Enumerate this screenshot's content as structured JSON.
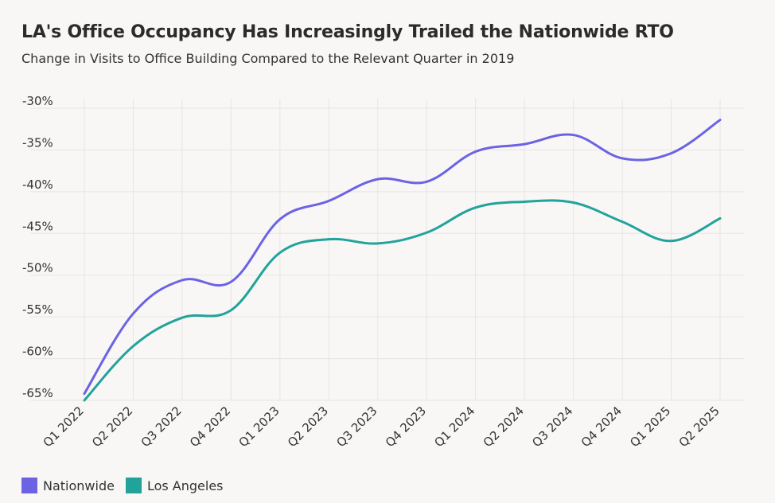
{
  "title": "LA's Office Occupancy Has Increasingly Trailed the Nationwide RTO",
  "subtitle": "Change in Visits to Office Building Compared to the Relevant Quarter in 2019",
  "colors": {
    "nationwide": "#6b63e3",
    "los_angeles": "#21a39b",
    "grid": "#e6e5e3",
    "background": "#f8f7f6"
  },
  "chart_data": {
    "type": "line",
    "title": "LA's Office Occupancy Has Increasingly Trailed the Nationwide RTO",
    "subtitle": "Change in Visits to Office Building Compared to the Relevant Quarter in 2019",
    "xlabel": "",
    "ylabel": "",
    "categories": [
      "Q1 2022",
      "Q2 2022",
      "Q3 2022",
      "Q4 2022",
      "Q1 2023",
      "Q2 2023",
      "Q3 2023",
      "Q4 2023",
      "Q1 2024",
      "Q2 2024",
      "Q3 2024",
      "Q4 2024",
      "Q1 2025",
      "Q2 2025"
    ],
    "y_ticks": [
      "-30%",
      "-35%",
      "-40%",
      "-45%",
      "-50%",
      "-55%",
      "-60%",
      "-65%"
    ],
    "y_tick_values": [
      -30,
      -35,
      -40,
      -45,
      -50,
      -55,
      -60,
      -65
    ],
    "ylim": [
      -66,
      -29
    ],
    "grid": true,
    "legend_position": "bottom-left",
    "series": [
      {
        "name": "Nationwide",
        "color": "#6b63e3",
        "values": [
          -64.2,
          -54.6,
          -50.6,
          -50.8,
          -43.3,
          -41.1,
          -38.5,
          -38.8,
          -35.2,
          -34.3,
          -33.2,
          -36.0,
          -35.4,
          -31.4
        ]
      },
      {
        "name": "Los Angeles",
        "color": "#21a39b",
        "values": [
          -65.0,
          -58.5,
          -55.1,
          -54.2,
          -47.3,
          -45.7,
          -46.2,
          -44.9,
          -41.9,
          -41.2,
          -41.3,
          -43.6,
          -45.9,
          -43.2
        ]
      }
    ]
  }
}
